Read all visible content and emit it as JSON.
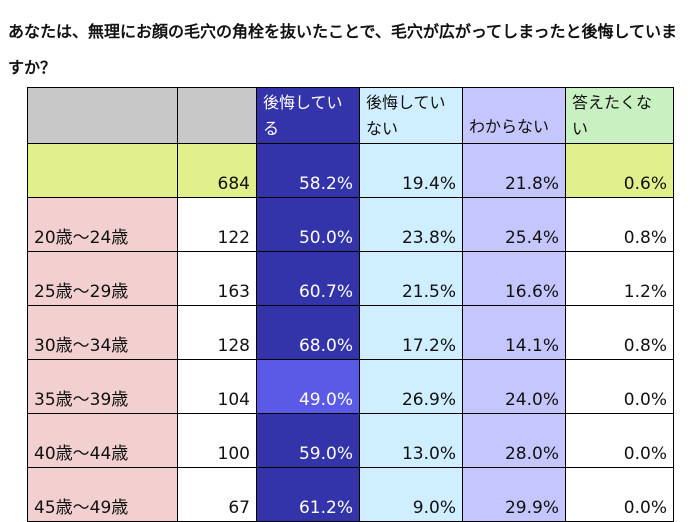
{
  "title": "あなたは、無理にお顔の毛穴の角栓を抜いたことで、毛穴が広がってしまったと後悔していますか？",
  "chart_data": {
    "type": "table",
    "columns": [
      "",
      "",
      "後悔している",
      "後悔していない",
      "わからない",
      "答えたくない"
    ],
    "rows": [
      {
        "label": "",
        "n": "684",
        "values": [
          "58.2%",
          "19.4%",
          "21.8%",
          "0.6%"
        ]
      },
      {
        "label": "20歳～24歳",
        "n": "122",
        "values": [
          "50.0%",
          "23.8%",
          "25.4%",
          "0.8%"
        ]
      },
      {
        "label": "25歳～29歳",
        "n": "163",
        "values": [
          "60.7%",
          "21.5%",
          "16.6%",
          "1.2%"
        ]
      },
      {
        "label": "30歳～34歳",
        "n": "128",
        "values": [
          "68.0%",
          "17.2%",
          "14.1%",
          "0.8%"
        ]
      },
      {
        "label": "35歳～39歳",
        "n": "104",
        "values": [
          "49.0%",
          "26.9%",
          "24.0%",
          "0.0%"
        ]
      },
      {
        "label": "40歳～44歳",
        "n": "100",
        "values": [
          "59.0%",
          "13.0%",
          "28.0%",
          "0.0%"
        ]
      },
      {
        "label": "45歳～49歳",
        "n": "67",
        "values": [
          "61.2%",
          "9.0%",
          "29.9%",
          "0.0%"
        ]
      }
    ]
  },
  "colors": {
    "header_gray": "#c8c8c8",
    "regret": "#3333aa",
    "regret_low": "#5a5ae6",
    "no_regret": "#cfeeff",
    "unknown": "#c6c6ff",
    "no_answer": "#c8f0c0",
    "total_row": "#e2f08c",
    "age_label": "#f2d0d0"
  }
}
